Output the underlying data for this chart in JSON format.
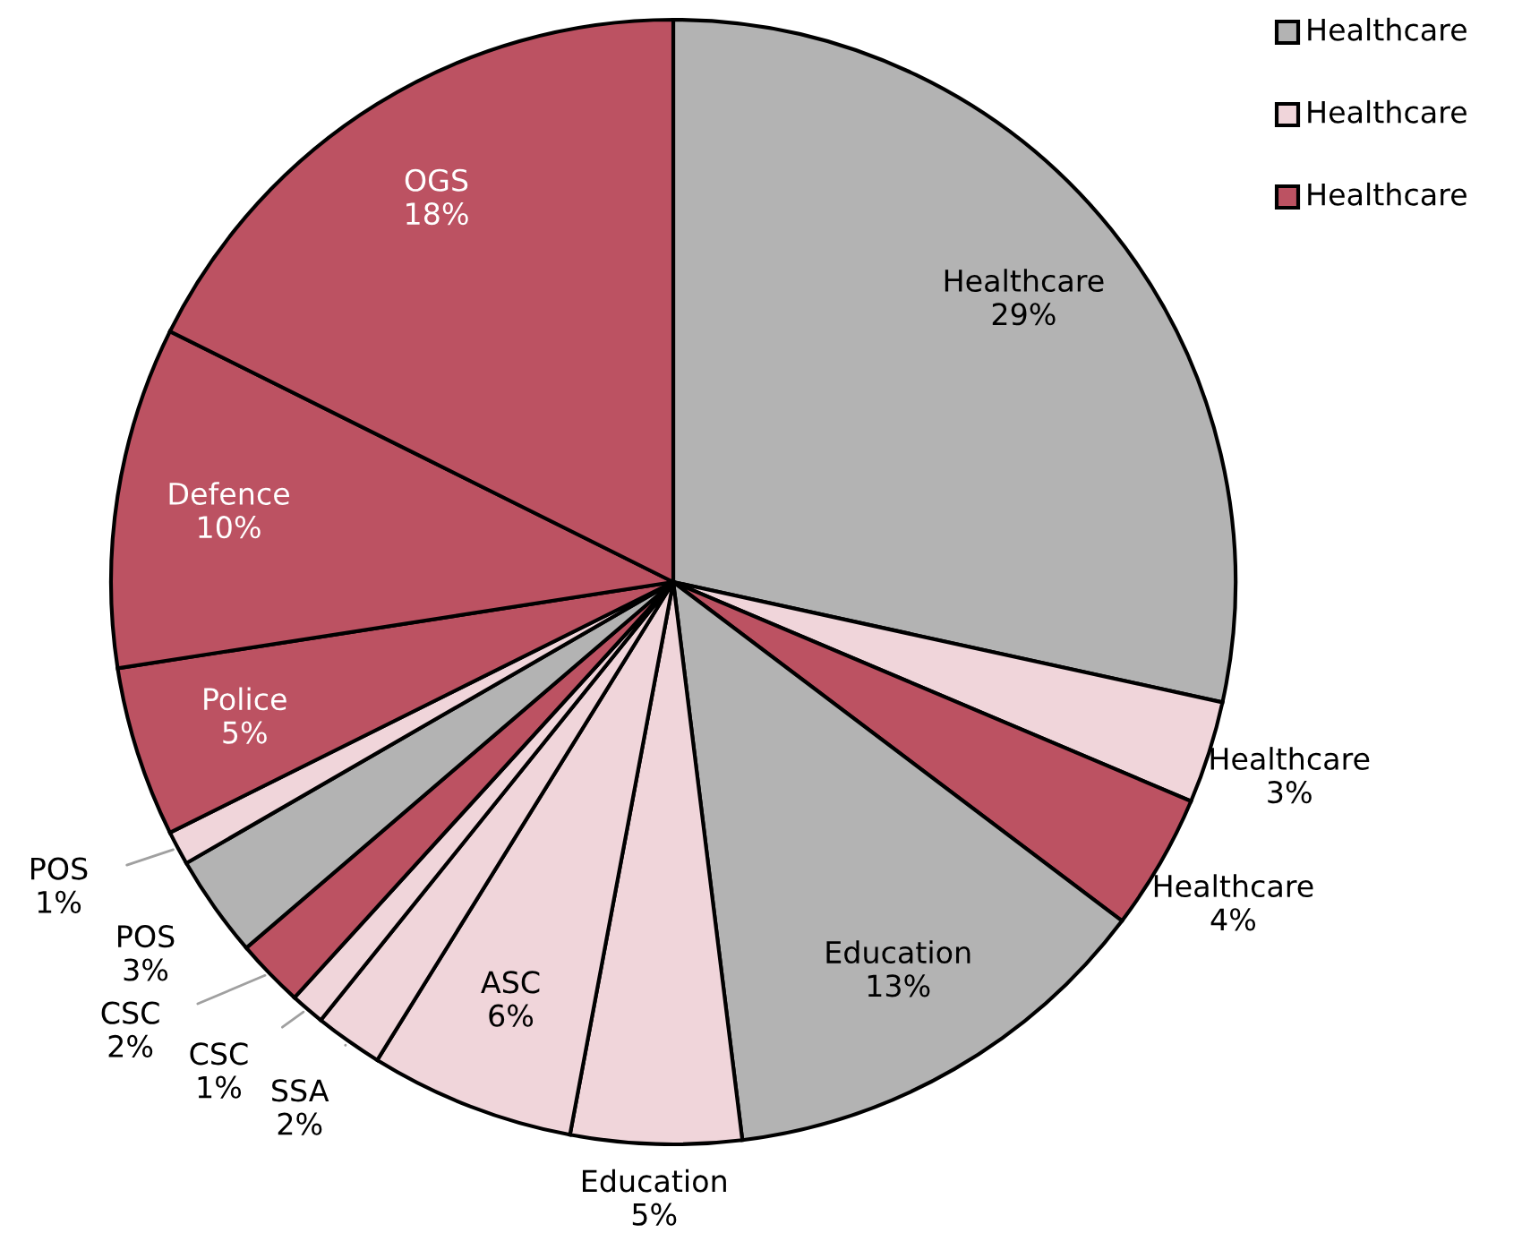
{
  "chart_data": {
    "type": "pie",
    "categories": [
      "Healthcare",
      "Healthcare",
      "Healthcare",
      "Education",
      "Education",
      "ASC",
      "SSA",
      "CSC",
      "CSC",
      "POS",
      "POS",
      "Police",
      "Defence",
      "OGS"
    ],
    "values": [
      29,
      3,
      4,
      13,
      5,
      6,
      2,
      1,
      2,
      3,
      1,
      5,
      10,
      18
    ],
    "value_labels": [
      "29%",
      "3%",
      "4%",
      "13%",
      "5%",
      "6%",
      "2%",
      "1%",
      "2%",
      "3%",
      "1%",
      "5%",
      "10%",
      "18%"
    ],
    "colors": [
      "#b3b3b3",
      "#f0d5da",
      "#bc5262",
      "#b3b3b3",
      "#f0d5da",
      "#f0d5da",
      "#f0d5da",
      "#f0d5da",
      "#bc5262",
      "#b3b3b3",
      "#f0d5da",
      "#bc5262",
      "#bc5262",
      "#bc5262"
    ],
    "annotations": [
      "Healthcare",
      "Healthcare",
      "Healthcare"
    ]
  }
}
